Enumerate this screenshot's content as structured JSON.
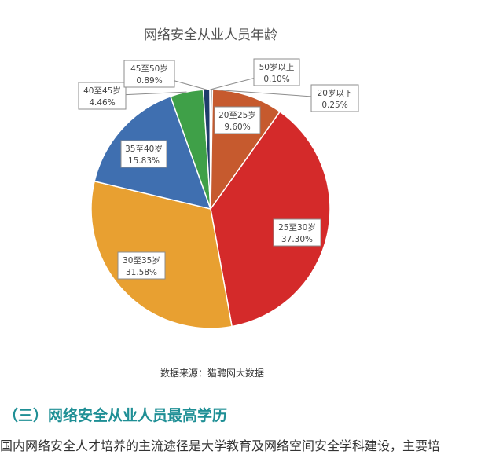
{
  "chart_data": {
    "type": "pie",
    "title": "网络安全从业人员年龄",
    "slices": [
      {
        "category": "20岁以下",
        "value": 0.25,
        "label": "0.25%",
        "color": "#7f7f7f"
      },
      {
        "category": "20至25岁",
        "value": 9.6,
        "label": "9.60%",
        "color": "#c65a2e"
      },
      {
        "category": "25至30岁",
        "value": 37.3,
        "label": "37.30%",
        "color": "#d42a2a"
      },
      {
        "category": "30至35岁",
        "value": 31.58,
        "label": "31.58%",
        "color": "#e8a031"
      },
      {
        "category": "35至40岁",
        "value": 15.83,
        "label": "15.83%",
        "color": "#3f6fb0"
      },
      {
        "category": "40至45岁",
        "value": 4.46,
        "label": "4.46%",
        "color": "#3fa048"
      },
      {
        "category": "45至50岁",
        "value": 0.89,
        "label": "0.89%",
        "color": "#1f3d6b"
      },
      {
        "category": "50岁以上",
        "value": 0.1,
        "label": "0.10%",
        "color": "#2f5f6f"
      }
    ],
    "start_angle": "12 o'clock",
    "direction": "clockwise",
    "legend": "none"
  },
  "source_note": "数据来源：猎聘网大数据",
  "section_heading": "（三）网络安全从业人员最高学历",
  "body_text": "国内网络安全人才培养的主流途径是大学教育及网络空间安全学科建设，主要培"
}
